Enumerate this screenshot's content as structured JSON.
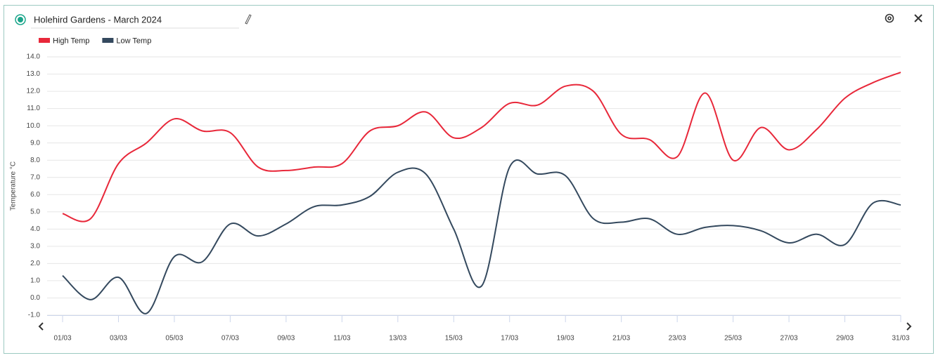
{
  "chart_data": {
    "type": "line",
    "title": "Holehird Gardens - March 2024",
    "y_label": "Temperature °C",
    "categories": [
      "01/03",
      null,
      "03/03",
      null,
      "05/03",
      null,
      "07/03",
      null,
      "09/03",
      null,
      "11/03",
      null,
      "13/03",
      null,
      "15/03",
      null,
      "17/03",
      null,
      "19/03",
      null,
      "21/03",
      null,
      "23/03",
      null,
      "25/03",
      null,
      "27/03",
      null,
      "29/03",
      null,
      "31/03"
    ],
    "series": [
      {
        "name": "High Temp",
        "color": "#e8283a",
        "values": [
          4.9,
          4.6,
          7.8,
          9.0,
          10.4,
          9.7,
          9.6,
          7.6,
          7.4,
          7.6,
          7.8,
          9.7,
          10.0,
          10.8,
          9.3,
          9.9,
          11.3,
          11.2,
          12.3,
          12.0,
          9.5,
          9.2,
          8.2,
          11.9,
          8.0,
          9.9,
          8.6,
          9.8,
          11.6,
          12.5,
          13.1
        ]
      },
      {
        "name": "Low Temp",
        "color": "#34495e",
        "values": [
          1.3,
          -0.1,
          1.2,
          -0.9,
          2.4,
          2.1,
          4.3,
          3.6,
          4.3,
          5.3,
          5.4,
          5.9,
          7.3,
          7.2,
          4.0,
          0.7,
          7.6,
          7.2,
          7.1,
          4.6,
          4.4,
          4.6,
          3.7,
          4.1,
          4.2,
          3.9,
          3.2,
          3.7,
          3.1,
          5.5,
          5.4
        ]
      }
    ],
    "ylim": [
      -1,
      14
    ],
    "yticks": [
      {
        "value": -1,
        "label": "-1.0"
      },
      {
        "value": 0,
        "label": "0.0"
      },
      {
        "value": 1,
        "label": "1.0"
      },
      {
        "value": 2,
        "label": "2.0"
      },
      {
        "value": 3,
        "label": "3.0"
      },
      {
        "value": 4,
        "label": "4.0"
      },
      {
        "value": 5,
        "label": "5.0"
      },
      {
        "value": 6,
        "label": "6.0"
      },
      {
        "value": 7,
        "label": "7.0"
      },
      {
        "value": 8,
        "label": "8.0"
      },
      {
        "value": 9,
        "label": "9.0"
      },
      {
        "value": 10,
        "label": "10.0"
      },
      {
        "value": 11,
        "label": "11.0"
      },
      {
        "value": 12,
        "label": "12.0"
      },
      {
        "value": 13,
        "label": "13.0"
      },
      {
        "value": 14,
        "label": "14.0"
      }
    ],
    "grid": true,
    "legend": "top-left"
  }
}
